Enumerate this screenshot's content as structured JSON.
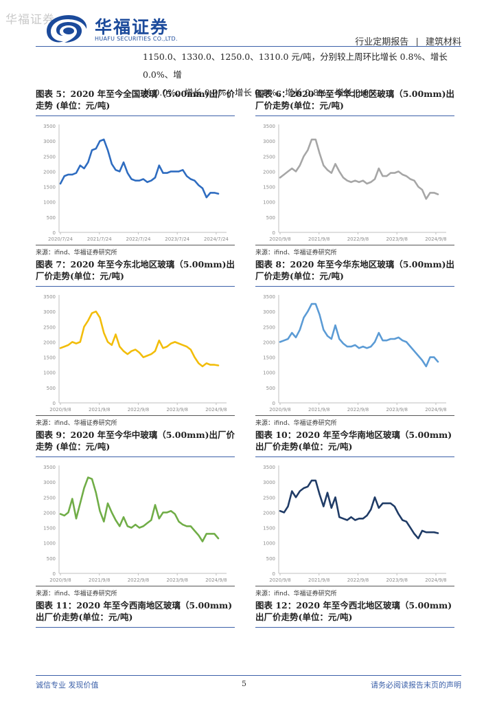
{
  "watermark": "华福证券",
  "logo": {
    "name_cn": "华福证券",
    "name_en": "HUAFU SECURITIES CO.,LTD."
  },
  "header": {
    "report_type": "行业定期报告",
    "separator": "|",
    "sector": "建筑材料"
  },
  "intro": {
    "line1": "1150.0、1330.0、1250.0、1310.0 元/吨，分别较上周环比增长 0.8%、增长 0.0%、增",
    "line2": "长 0.0%、增长 0.0%、增长 0.8%、增长 0.8%、增长 0.0%。"
  },
  "figures": [
    {
      "title": "图表 5：2020 年至今全国玻璃（5.00mm)出厂价走势 (单位：元/吨)",
      "source": "来源：ifind、华福证券研究所"
    },
    {
      "title": "图表 6：2020 年至今华北地区玻璃（5.00mm)出厂价走势(单位：元/吨)",
      "source": "来源：ifind、华福证券研究所"
    },
    {
      "title": "图表 7：2020 年至今东北地区玻璃（5.00mm)出厂价走势(单位：元/吨)",
      "source": "来源：ifind、华福证券研究所"
    },
    {
      "title": "图表 8：2020 年至今华东地区玻璃（5.00mm)出厂价走势(单位：元/吨)",
      "source": "来源：ifind、华福证券研究所"
    },
    {
      "title": "图表 9：2020 年至今华中玻璃（5.00mm)出厂价走势 (单位：元/吨)",
      "source": "来源：ifind、华福证券研究所"
    },
    {
      "title": "图表 10：2020 年至今华南地区玻璃（5.00mm)出厂价走势(单位：元/吨)",
      "source": "来源：ifind、华福证券研究所"
    },
    {
      "title": "图表 11：2020 年至今西南地区玻璃（5.00mm)出厂价走势(单位：元/吨)",
      "source": ""
    },
    {
      "title": "图表 12：2020 年至今西北地区玻璃（5.00mm)出厂价走势(单位：元/吨)",
      "source": ""
    }
  ],
  "footer": {
    "left": "诚信专业  发现价值",
    "page": "5",
    "right": "请务必阅读报告末页的声明"
  },
  "chart_data": [
    {
      "type": "line",
      "title": "全国",
      "color": "#2e6cc0",
      "ylim": [
        0,
        3500
      ],
      "yticks": [
        "0",
        "500",
        "1000",
        "1500",
        "2000",
        "2500",
        "3000",
        "3500"
      ],
      "xticks": [
        "2020/7/24",
        "2021/7/24",
        "2022/7/24",
        "2023/7/24",
        "2024/7/24"
      ],
      "values": [
        1600,
        1850,
        1900,
        1900,
        1950,
        2200,
        2100,
        2300,
        2700,
        2750,
        3000,
        3050,
        2700,
        2250,
        2050,
        2000,
        2300,
        1950,
        1750,
        1700,
        1700,
        1750,
        1650,
        1700,
        1800,
        2200,
        1950,
        1950,
        2000,
        2000,
        2000,
        2050,
        1850,
        1750,
        1700,
        1550,
        1450,
        1150,
        1300,
        1300,
        1270
      ]
    },
    {
      "type": "line",
      "title": "华北",
      "color": "#a6a6a6",
      "ylim": [
        0,
        3500
      ],
      "yticks": [
        "0",
        "500",
        "1000",
        "1500",
        "2000",
        "2500",
        "3000",
        "3500"
      ],
      "xticks": [
        "2020/9/8",
        "2021/9/8",
        "2022/9/8",
        "2023/9/8",
        "2024/9/8"
      ],
      "values": [
        1800,
        1900,
        2000,
        2100,
        2000,
        2200,
        2500,
        2700,
        3050,
        3050,
        2600,
        2200,
        2050,
        1950,
        2250,
        2000,
        1800,
        1700,
        1650,
        1700,
        1650,
        1700,
        1600,
        1650,
        1750,
        2100,
        1850,
        1850,
        1950,
        1950,
        2000,
        1900,
        1850,
        1750,
        1700,
        1500,
        1400,
        1100,
        1300,
        1300,
        1250
      ]
    },
    {
      "type": "line",
      "title": "东北",
      "color": "#f2bd0a",
      "ylim": [
        0,
        3500
      ],
      "yticks": [
        "0",
        "500",
        "1000",
        "1500",
        "2000",
        "2500",
        "3000",
        "3500"
      ],
      "xticks": [
        "2020/9/8",
        "2021/9/8",
        "2022/9/8",
        "2023/9/8",
        "2024/9/8"
      ],
      "values": [
        1800,
        1850,
        1900,
        2000,
        1950,
        2000,
        2500,
        2700,
        2950,
        3000,
        2800,
        2300,
        2000,
        1900,
        2250,
        1850,
        1700,
        1600,
        1700,
        1750,
        1650,
        1500,
        1550,
        1600,
        1700,
        2050,
        1800,
        1850,
        1950,
        2000,
        1950,
        1900,
        1850,
        1750,
        1500,
        1300,
        1200,
        1300,
        1250,
        1250,
        1230
      ]
    },
    {
      "type": "line",
      "title": "华东",
      "color": "#5b9bd5",
      "ylim": [
        0,
        3500
      ],
      "yticks": [
        "0",
        "500",
        "1000",
        "1500",
        "2000",
        "2500",
        "3000",
        "3500"
      ],
      "xticks": [
        "2020/9/8",
        "2021/9/8",
        "2022/9/8",
        "2023/9/8",
        "2024/9/8"
      ],
      "values": [
        2000,
        2050,
        2100,
        2300,
        2150,
        2400,
        2800,
        3000,
        3250,
        3250,
        2900,
        2400,
        2200,
        2100,
        2550,
        2100,
        1950,
        1850,
        1850,
        1900,
        1800,
        1850,
        1800,
        1850,
        2000,
        2300,
        2050,
        2050,
        2100,
        2100,
        2150,
        2050,
        2000,
        1850,
        1700,
        1550,
        1400,
        1200,
        1500,
        1500,
        1350
      ]
    },
    {
      "type": "line",
      "title": "华中",
      "color": "#70ad47",
      "ylim": [
        0,
        3500
      ],
      "yticks": [
        "0",
        "500",
        "1000",
        "1500",
        "2000",
        "2500",
        "3000",
        "3500"
      ],
      "xticks": [
        "2020/9/8",
        "2021/9/8",
        "2022/9/8",
        "2023/9/8",
        "2024/9/8"
      ],
      "values": [
        1950,
        1900,
        2000,
        2450,
        1800,
        2300,
        2800,
        3150,
        3100,
        2650,
        2050,
        1700,
        2300,
        2000,
        1750,
        1550,
        1850,
        1550,
        1500,
        1600,
        1500,
        1550,
        1650,
        1750,
        2250,
        1800,
        2000,
        2000,
        2050,
        1950,
        1700,
        1600,
        1550,
        1550,
        1400,
        1250,
        1050,
        1300,
        1300,
        1300,
        1150
      ]
    },
    {
      "type": "line",
      "title": "华南",
      "color": "#1f3b66",
      "ylim": [
        0,
        3500
      ],
      "yticks": [
        "0",
        "500",
        "1000",
        "1500",
        "2000",
        "2500",
        "3000",
        "3500"
      ],
      "xticks": [
        "2020/9/8",
        "2021/9/8",
        "2022/9/8",
        "2023/9/8",
        "2024/9/8"
      ],
      "values": [
        2050,
        2000,
        2200,
        2700,
        2500,
        2700,
        2800,
        2850,
        3050,
        3050,
        2600,
        2200,
        2650,
        2150,
        2500,
        1850,
        1800,
        1750,
        1850,
        1750,
        1800,
        1800,
        1900,
        2100,
        2500,
        2150,
        2300,
        2300,
        2300,
        2200,
        1950,
        1750,
        1700,
        1500,
        1300,
        1150,
        1400,
        1350,
        1350,
        1350,
        1320
      ]
    }
  ]
}
